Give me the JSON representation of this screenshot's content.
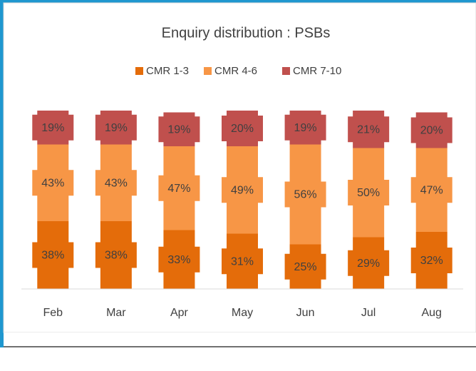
{
  "chart_data": {
    "type": "stacked_bar",
    "title": "Enquiry distribution : PSBs",
    "categories": [
      "Feb",
      "Mar",
      "Apr",
      "May",
      "Jun",
      "Jul",
      "Aug"
    ],
    "series": [
      {
        "name": "CMR 1-3",
        "color": "#e46c0a",
        "values": [
          38,
          38,
          33,
          31,
          25,
          29,
          32
        ],
        "value_labels": [
          "38%",
          "38%",
          "33%",
          "31%",
          "25%",
          "29%",
          "32%"
        ]
      },
      {
        "name": "CMR 4-6",
        "color": "#f79646",
        "values": [
          43,
          43,
          47,
          49,
          56,
          50,
          47
        ],
        "value_labels": [
          "43%",
          "43%",
          "47%",
          "49%",
          "56%",
          "50%",
          "47%"
        ]
      },
      {
        "name": "CMR 7-10",
        "color": "#c0504d",
        "values": [
          19,
          19,
          19,
          20,
          19,
          21,
          20
        ],
        "value_labels": [
          "19%",
          "19%",
          "19%",
          "20%",
          "19%",
          "21%",
          "20%"
        ]
      }
    ],
    "ylim": [
      0,
      100
    ],
    "legend": "top"
  }
}
